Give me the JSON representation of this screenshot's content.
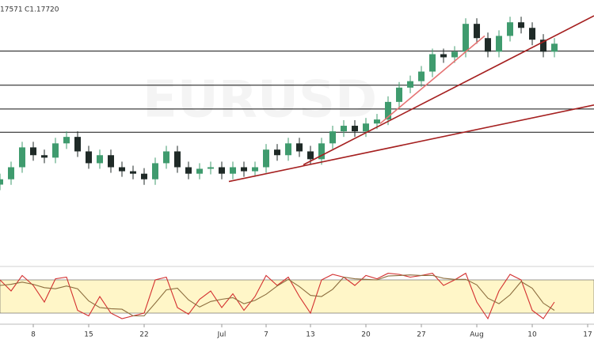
{
  "header": {
    "high_fragment": "17571",
    "close": "C1.17720"
  },
  "chart_data": {
    "type": "candlestick",
    "watermark": "EURUSD",
    "x": [
      -3,
      -2,
      -1,
      0,
      1,
      2,
      3,
      4,
      5,
      6,
      7,
      8,
      9,
      10,
      11,
      12,
      13,
      14,
      15,
      16,
      17,
      18,
      19,
      20,
      21,
      22,
      23,
      24,
      25,
      26,
      27,
      28,
      29,
      30,
      31,
      32,
      33,
      34,
      35,
      36,
      37,
      38,
      39,
      40,
      41,
      42,
      43,
      44,
      45,
      46,
      47
    ],
    "xlim": [
      -3,
      50.57
    ],
    "xticks": [
      {
        "value": 0,
        "label": "8"
      },
      {
        "value": 5,
        "label": "15"
      },
      {
        "value": 10,
        "label": "22"
      },
      {
        "value": 17,
        "label": "Jul"
      },
      {
        "value": 21,
        "label": "7"
      },
      {
        "value": 25,
        "label": "13"
      },
      {
        "value": 30,
        "label": "20"
      },
      {
        "value": 35,
        "label": "27"
      },
      {
        "value": 40,
        "label": "Aug"
      },
      {
        "value": 45,
        "label": "10"
      },
      {
        "value": 50,
        "label": "17"
      }
    ],
    "ylim": [
      1.078,
      1.1968
    ],
    "open": [
      1.114,
      1.1164,
      1.1218,
      1.1307,
      1.1272,
      1.1261,
      1.1325,
      1.1354,
      1.1289,
      1.1236,
      1.1272,
      1.1218,
      1.12,
      1.1189,
      1.1164,
      1.1236,
      1.1289,
      1.1218,
      1.1189,
      1.1211,
      1.1218,
      1.1189,
      1.1218,
      1.12,
      1.1218,
      1.1297,
      1.1272,
      1.1325,
      1.1289,
      1.1254,
      1.1325,
      1.1379,
      1.1404,
      1.1379,
      1.1414,
      1.1432,
      1.1511,
      1.1575,
      1.1604,
      1.1647,
      1.1725,
      1.1711,
      1.1736,
      1.1861,
      1.1797,
      1.1736,
      1.1807,
      1.1868,
      1.1843,
      1.179,
      1.1736
    ],
    "high": [
      1.1189,
      1.1243,
      1.1332,
      1.1332,
      1.1297,
      1.135,
      1.1379,
      1.1379,
      1.1314,
      1.1297,
      1.1297,
      1.1243,
      1.1225,
      1.1214,
      1.1261,
      1.1314,
      1.1314,
      1.1243,
      1.1236,
      1.1243,
      1.1243,
      1.1243,
      1.1243,
      1.1243,
      1.1322,
      1.1322,
      1.135,
      1.135,
      1.1314,
      1.135,
      1.1404,
      1.1429,
      1.1429,
      1.1439,
      1.1457,
      1.1536,
      1.16,
      1.1629,
      1.1672,
      1.175,
      1.175,
      1.1761,
      1.1886,
      1.1886,
      1.1822,
      1.1832,
      1.1893,
      1.1893,
      1.1868,
      1.1815,
      1.1797
    ],
    "low": [
      1.1115,
      1.1139,
      1.1193,
      1.1247,
      1.1236,
      1.1236,
      1.13,
      1.1264,
      1.1211,
      1.1211,
      1.1193,
      1.1175,
      1.1164,
      1.1139,
      1.1139,
      1.1211,
      1.1193,
      1.1164,
      1.1164,
      1.1186,
      1.1164,
      1.1164,
      1.1175,
      1.1175,
      1.1193,
      1.1247,
      1.1247,
      1.1264,
      1.1229,
      1.1229,
      1.13,
      1.1354,
      1.1354,
      1.1354,
      1.1389,
      1.1407,
      1.1486,
      1.155,
      1.1579,
      1.1622,
      1.1686,
      1.1686,
      1.1711,
      1.1772,
      1.1711,
      1.1711,
      1.1782,
      1.1818,
      1.1765,
      1.1711,
      1.1711
    ],
    "close": [
      1.1164,
      1.1218,
      1.1307,
      1.1272,
      1.1261,
      1.1325,
      1.1354,
      1.1289,
      1.1236,
      1.1272,
      1.1218,
      1.12,
      1.1189,
      1.1164,
      1.1236,
      1.1289,
      1.1218,
      1.1189,
      1.1211,
      1.1218,
      1.1189,
      1.1218,
      1.12,
      1.1218,
      1.1297,
      1.1272,
      1.1325,
      1.1289,
      1.1254,
      1.1325,
      1.1379,
      1.1404,
      1.1379,
      1.1414,
      1.1432,
      1.1511,
      1.1575,
      1.1604,
      1.1647,
      1.1725,
      1.1711,
      1.1736,
      1.1861,
      1.1797,
      1.1736,
      1.1807,
      1.1868,
      1.1843,
      1.179,
      1.1736,
      1.1772
    ],
    "up_color": "#3f9b6e",
    "down_color": "#1f2a27",
    "levels": [
      1.1739,
      1.1586,
      1.1479,
      1.1375
    ],
    "level_color": "#111111",
    "trendlines": [
      {
        "x": [
          17.64,
          50.57
        ],
        "y": [
          1.1154,
          1.1497
        ],
        "color": "#a52020"
      },
      {
        "x": [
          24.36,
          50.57
        ],
        "y": [
          1.1229,
          1.1897
        ],
        "color": "#a52020"
      },
      {
        "x": [
          31.29,
          40.71
        ],
        "y": [
          1.1414,
          1.1807
        ],
        "color": "#e57373"
      }
    ],
    "oscillator": {
      "type": "line",
      "ylim": [
        0,
        100
      ],
      "band": [
        20,
        80
      ],
      "band_color": "#fff6c8",
      "series": [
        {
          "color": "#d32f2f",
          "values": [
            80,
            60,
            88,
            70,
            40,
            82,
            85,
            25,
            15,
            50,
            20,
            10,
            15,
            20,
            80,
            85,
            30,
            18,
            45,
            60,
            30,
            55,
            25,
            50,
            88,
            70,
            85,
            50,
            20,
            80,
            90,
            85,
            70,
            88,
            82,
            92,
            90,
            85,
            88,
            92,
            70,
            80,
            92,
            40,
            10,
            60,
            90,
            80,
            25,
            10,
            40
          ]
        },
        {
          "color": "#8d6e3f",
          "values": [
            70,
            72,
            76,
            72,
            66,
            64,
            69,
            64,
            42,
            30,
            28,
            27,
            15,
            15,
            38,
            62,
            65,
            44,
            31,
            41,
            45,
            48,
            37,
            43,
            54,
            69,
            81,
            68,
            52,
            50,
            63,
            85,
            82,
            81,
            80,
            87,
            88,
            89,
            88,
            88,
            83,
            81,
            81,
            71,
            47,
            37,
            53,
            77,
            65,
            38,
            25
          ]
        }
      ]
    }
  }
}
